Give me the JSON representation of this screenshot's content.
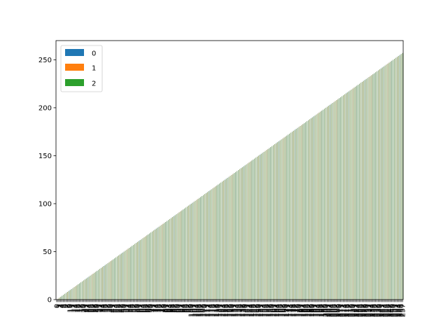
{
  "chart_data": {
    "type": "bar",
    "orientation": "vertical",
    "grouping": "grouped",
    "title": "",
    "xlabel": "",
    "ylabel": "",
    "ylim": [
      0,
      270
    ],
    "y_ticks": [
      0,
      50,
      100,
      150,
      200,
      250
    ],
    "grid": false,
    "legend_position": "top-left",
    "categories": [
      "0",
      "1",
      "2",
      "3",
      "4",
      "5",
      "6",
      "7",
      "8",
      "9",
      "10",
      "11",
      "12",
      "13",
      "14",
      "15",
      "16",
      "17",
      "18",
      "19",
      "20",
      "21",
      "22",
      "23",
      "24",
      "25",
      "26",
      "27",
      "28",
      "29",
      "30",
      "31",
      "32",
      "33",
      "34",
      "35",
      "36",
      "37",
      "38",
      "39",
      "40",
      "41",
      "42",
      "43",
      "44",
      "45",
      "46",
      "47",
      "48",
      "49",
      "50",
      "51",
      "52",
      "53",
      "54",
      "55",
      "56",
      "57",
      "58",
      "59",
      "60",
      "61",
      "62",
      "63",
      "64",
      "65",
      "66",
      "67",
      "68",
      "69",
      "70",
      "71",
      "72",
      "73",
      "74",
      "75",
      "76",
      "77",
      "78",
      "79",
      "80",
      "81",
      "82",
      "83",
      "84",
      "85",
      "86",
      "87",
      "88",
      "89",
      "90",
      "91",
      "92",
      "93",
      "94",
      "95",
      "96",
      "97",
      "98",
      "99",
      "100",
      "101",
      "102",
      "103",
      "104",
      "105",
      "106",
      "107",
      "108",
      "109",
      "110",
      "111",
      "112",
      "113",
      "114",
      "115",
      "116",
      "117",
      "118",
      "119",
      "120",
      "121",
      "122",
      "123",
      "124",
      "125",
      "126",
      "127",
      "128",
      "129",
      "130",
      "131",
      "132",
      "133",
      "134",
      "135",
      "136",
      "137",
      "138",
      "139",
      "140",
      "141",
      "142",
      "143",
      "144",
      "145",
      "146",
      "147",
      "148",
      "149",
      "150",
      "151",
      "152",
      "153",
      "154",
      "155",
      "156",
      "157",
      "158",
      "159",
      "160",
      "161",
      "162",
      "163",
      "164",
      "165",
      "166",
      "167",
      "168",
      "169",
      "170",
      "171",
      "172",
      "173",
      "174",
      "175",
      "176",
      "177",
      "178",
      "179",
      "180",
      "181",
      "182",
      "183",
      "184",
      "185",
      "186",
      "187",
      "188",
      "189",
      "190",
      "191",
      "192",
      "193",
      "194",
      "195",
      "196",
      "197",
      "198",
      "199",
      "200",
      "201",
      "202",
      "203",
      "204",
      "205",
      "206",
      "207",
      "208",
      "209",
      "210",
      "211",
      "212",
      "213",
      "214",
      "215",
      "216",
      "217",
      "218",
      "219",
      "220",
      "221",
      "222",
      "223",
      "224",
      "225",
      "226",
      "227",
      "228",
      "229",
      "230",
      "231",
      "232",
      "233",
      "234",
      "235",
      "236",
      "237",
      "238",
      "239",
      "240",
      "241",
      "242",
      "243",
      "244",
      "245",
      "246",
      "247",
      "248",
      "249",
      "250",
      "251",
      "252",
      "253",
      "254",
      "255",
      "256",
      "257"
    ],
    "series": [
      {
        "name": "0",
        "color": "#1f77b4",
        "values": [
          0,
          1,
          2,
          3,
          4,
          5,
          6,
          7,
          8,
          9,
          10,
          11,
          12,
          13,
          14,
          15,
          16,
          17,
          18,
          19,
          20,
          21,
          22,
          23,
          24,
          25,
          26,
          27,
          28,
          29,
          30,
          31,
          32,
          33,
          34,
          35,
          36,
          37,
          38,
          39,
          40,
          41,
          42,
          43,
          44,
          45,
          46,
          47,
          48,
          49,
          50,
          51,
          52,
          53,
          54,
          55,
          56,
          57,
          58,
          59,
          60,
          61,
          62,
          63,
          64,
          65,
          66,
          67,
          68,
          69,
          70,
          71,
          72,
          73,
          74,
          75,
          76,
          77,
          78,
          79,
          80,
          81,
          82,
          83,
          84,
          85,
          86,
          87,
          88,
          89,
          90,
          91,
          92,
          93,
          94,
          95,
          96,
          97,
          98,
          99,
          100,
          101,
          102,
          103,
          104,
          105,
          106,
          107,
          108,
          109,
          110,
          111,
          112,
          113,
          114,
          115,
          116,
          117,
          118,
          119,
          120,
          121,
          122,
          123,
          124,
          125,
          126,
          127,
          128,
          129,
          130,
          131,
          132,
          133,
          134,
          135,
          136,
          137,
          138,
          139,
          140,
          141,
          142,
          143,
          144,
          145,
          146,
          147,
          148,
          149,
          150,
          151,
          152,
          153,
          154,
          155,
          156,
          157,
          158,
          159,
          160,
          161,
          162,
          163,
          164,
          165,
          166,
          167,
          168,
          169,
          170,
          171,
          172,
          173,
          174,
          175,
          176,
          177,
          178,
          179,
          180,
          181,
          182,
          183,
          184,
          185,
          186,
          187,
          188,
          189,
          190,
          191,
          192,
          193,
          194,
          195,
          196,
          197,
          198,
          199,
          200,
          201,
          202,
          203,
          204,
          205,
          206,
          207,
          208,
          209,
          210,
          211,
          212,
          213,
          214,
          215,
          216,
          217,
          218,
          219,
          220,
          221,
          222,
          223,
          224,
          225,
          226,
          227,
          228,
          229,
          230,
          231,
          232,
          233,
          234,
          235,
          236,
          237,
          238,
          239,
          240,
          241,
          242,
          243,
          244,
          245,
          246,
          247,
          248,
          249,
          250,
          251,
          252,
          253,
          254,
          255,
          256,
          257
        ]
      },
      {
        "name": "1",
        "color": "#ff7f0e",
        "values": [
          0,
          1,
          2,
          3,
          4,
          5,
          6,
          7,
          8,
          9,
          10,
          11,
          12,
          13,
          14,
          15,
          16,
          17,
          18,
          19,
          20,
          21,
          22,
          23,
          24,
          25,
          26,
          27,
          28,
          29,
          30,
          31,
          32,
          33,
          34,
          35,
          36,
          37,
          38,
          39,
          40,
          41,
          42,
          43,
          44,
          45,
          46,
          47,
          48,
          49,
          50,
          51,
          52,
          53,
          54,
          55,
          56,
          57,
          58,
          59,
          60,
          61,
          62,
          63,
          64,
          65,
          66,
          67,
          68,
          69,
          70,
          71,
          72,
          73,
          74,
          75,
          76,
          77,
          78,
          79,
          80,
          81,
          82,
          83,
          84,
          85,
          86,
          87,
          88,
          89,
          90,
          91,
          92,
          93,
          94,
          95,
          96,
          97,
          98,
          99,
          100,
          101,
          102,
          103,
          104,
          105,
          106,
          107,
          108,
          109,
          110,
          111,
          112,
          113,
          114,
          115,
          116,
          117,
          118,
          119,
          120,
          121,
          122,
          123,
          124,
          125,
          126,
          127,
          128,
          129,
          130,
          131,
          132,
          133,
          134,
          135,
          136,
          137,
          138,
          139,
          140,
          141,
          142,
          143,
          144,
          145,
          146,
          147,
          148,
          149,
          150,
          151,
          152,
          153,
          154,
          155,
          156,
          157,
          158,
          159,
          160,
          161,
          162,
          163,
          164,
          165,
          166,
          167,
          168,
          169,
          170,
          171,
          172,
          173,
          174,
          175,
          176,
          177,
          178,
          179,
          180,
          181,
          182,
          183,
          184,
          185,
          186,
          187,
          188,
          189,
          190,
          191,
          192,
          193,
          194,
          195,
          196,
          197,
          198,
          199,
          200,
          201,
          202,
          203,
          204,
          205,
          206,
          207,
          208,
          209,
          210,
          211,
          212,
          213,
          214,
          215,
          216,
          217,
          218,
          219,
          220,
          221,
          222,
          223,
          224,
          225,
          226,
          227,
          228,
          229,
          230,
          231,
          232,
          233,
          234,
          235,
          236,
          237,
          238,
          239,
          240,
          241,
          242,
          243,
          244,
          245,
          246,
          247,
          248,
          249,
          250,
          251,
          252,
          253,
          254,
          255,
          256,
          257
        ]
      },
      {
        "name": "2",
        "color": "#2ca02c",
        "values": [
          0,
          1,
          2,
          3,
          4,
          5,
          6,
          7,
          8,
          9,
          10,
          11,
          12,
          13,
          14,
          15,
          16,
          17,
          18,
          19,
          20,
          21,
          22,
          23,
          24,
          25,
          26,
          27,
          28,
          29,
          30,
          31,
          32,
          33,
          34,
          35,
          36,
          37,
          38,
          39,
          40,
          41,
          42,
          43,
          44,
          45,
          46,
          47,
          48,
          49,
          50,
          51,
          52,
          53,
          54,
          55,
          56,
          57,
          58,
          59,
          60,
          61,
          62,
          63,
          64,
          65,
          66,
          67,
          68,
          69,
          70,
          71,
          72,
          73,
          74,
          75,
          76,
          77,
          78,
          79,
          80,
          81,
          82,
          83,
          84,
          85,
          86,
          87,
          88,
          89,
          90,
          91,
          92,
          93,
          94,
          95,
          96,
          97,
          98,
          99,
          100,
          101,
          102,
          103,
          104,
          105,
          106,
          107,
          108,
          109,
          110,
          111,
          112,
          113,
          114,
          115,
          116,
          117,
          118,
          119,
          120,
          121,
          122,
          123,
          124,
          125,
          126,
          127,
          128,
          129,
          130,
          131,
          132,
          133,
          134,
          135,
          136,
          137,
          138,
          139,
          140,
          141,
          142,
          143,
          144,
          145,
          146,
          147,
          148,
          149,
          150,
          151,
          152,
          153,
          154,
          155,
          156,
          157,
          158,
          159,
          160,
          161,
          162,
          163,
          164,
          165,
          166,
          167,
          168,
          169,
          170,
          171,
          172,
          173,
          174,
          175,
          176,
          177,
          178,
          179,
          180,
          181,
          182,
          183,
          184,
          185,
          186,
          187,
          188,
          189,
          190,
          191,
          192,
          193,
          194,
          195,
          196,
          197,
          198,
          199,
          200,
          201,
          202,
          203,
          204,
          205,
          206,
          207,
          208,
          209,
          210,
          211,
          212,
          213,
          214,
          215,
          216,
          217,
          218,
          219,
          220,
          221,
          222,
          223,
          224,
          225,
          226,
          227,
          228,
          229,
          230,
          231,
          232,
          233,
          234,
          235,
          236,
          237,
          238,
          239,
          240,
          241,
          242,
          243,
          244,
          245,
          246,
          247,
          248,
          249,
          250,
          251,
          252,
          253,
          254,
          255,
          256,
          257
        ]
      }
    ]
  }
}
